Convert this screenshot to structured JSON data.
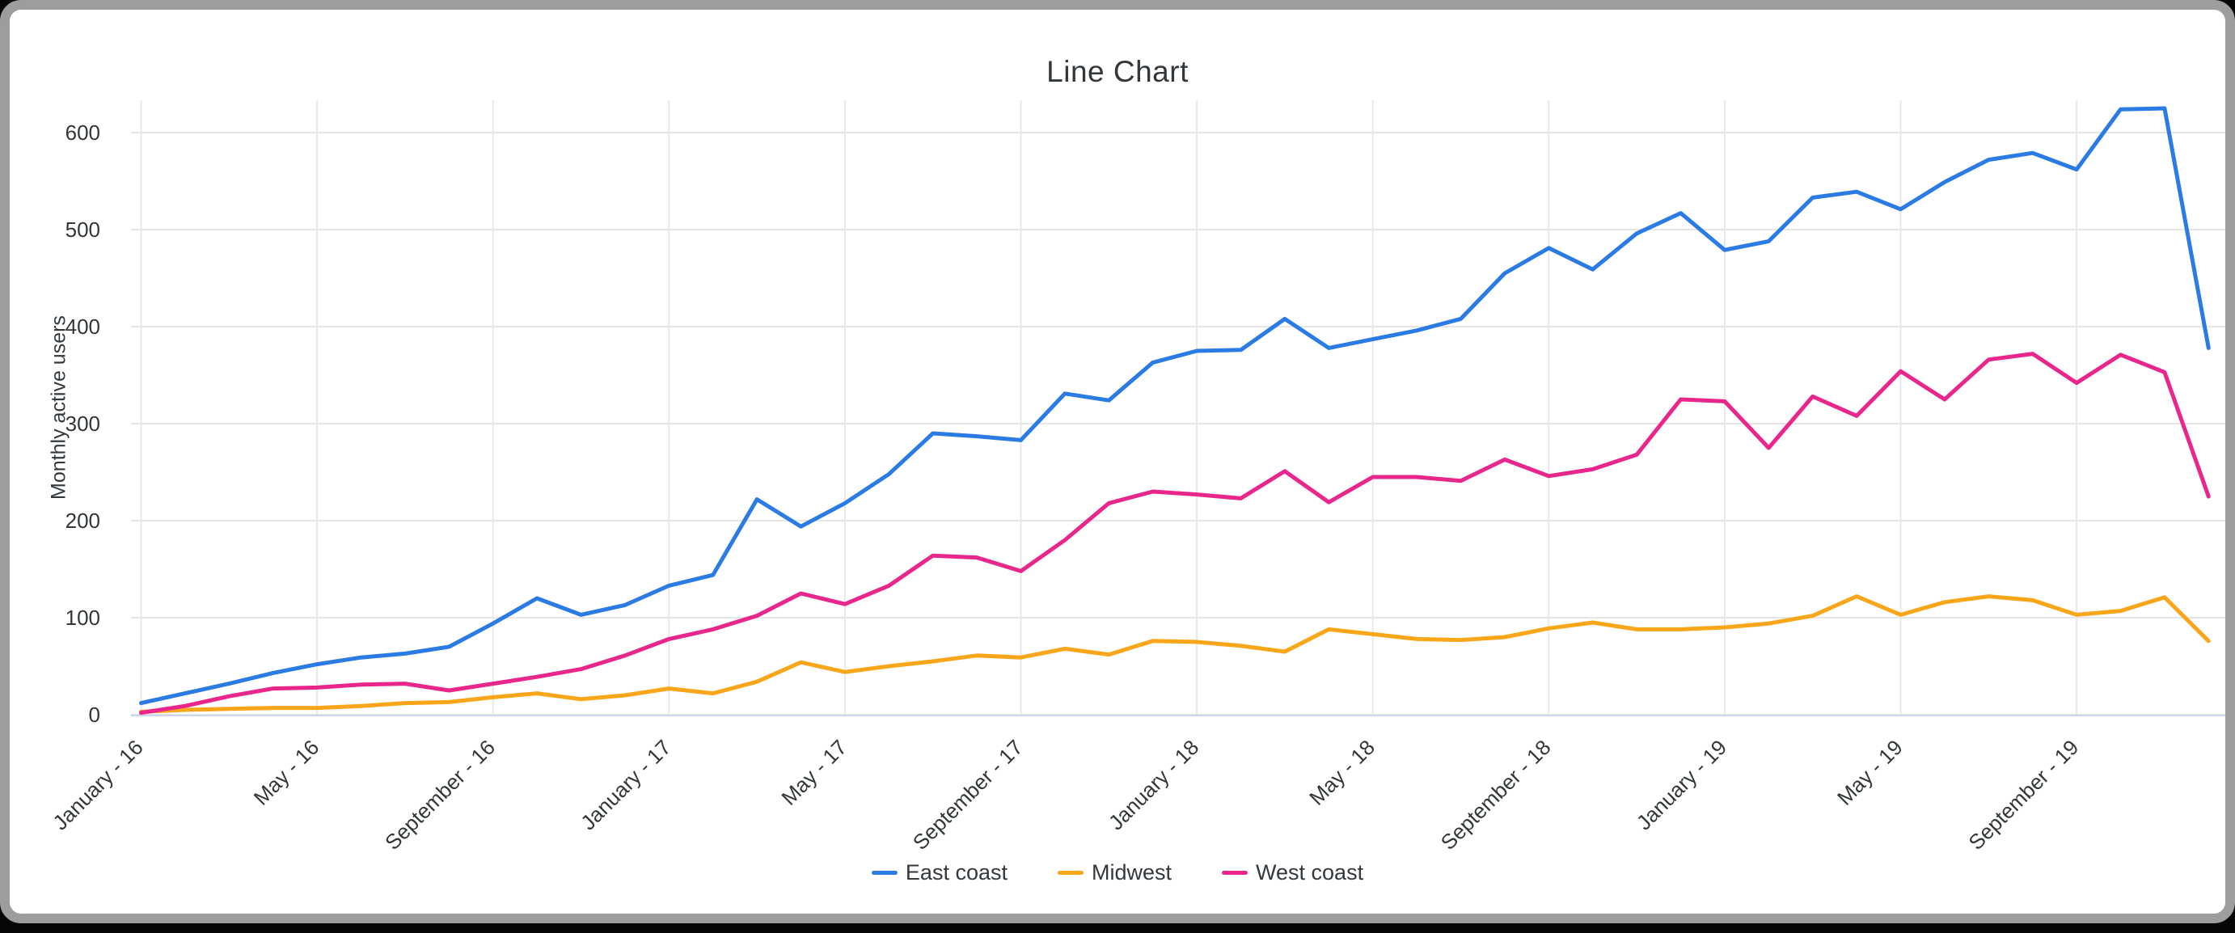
{
  "chart_data": {
    "type": "line",
    "title": "Line Chart",
    "xlabel": "",
    "ylabel": "Monthly active users",
    "ylim": [
      0,
      650
    ],
    "yticks": [
      0,
      100,
      200,
      300,
      400,
      500,
      600
    ],
    "grid": true,
    "legend_position": "bottom",
    "n_points": 48,
    "x_tick_labels": [
      "January - 16",
      "May - 16",
      "September - 16",
      "January - 17",
      "May - 17",
      "September - 17",
      "January - 18",
      "May - 18",
      "September - 18",
      "January - 19",
      "May - 19",
      "September - 19"
    ],
    "x_tick_indices": [
      0,
      4,
      8,
      12,
      16,
      20,
      24,
      28,
      32,
      36,
      40,
      44
    ],
    "axis_line_color": "#ccd6eb",
    "gridline_color": "#e6e6e6",
    "label_color": "#32373a",
    "series": [
      {
        "name": "East coast",
        "color": "#2b7be4",
        "values": [
          12,
          22,
          32,
          43,
          52,
          59,
          63,
          70,
          94,
          120,
          103,
          113,
          133,
          144,
          222,
          194,
          218,
          248,
          290,
          287,
          283,
          331,
          324,
          363,
          375,
          376,
          408,
          378,
          387,
          396,
          408,
          455,
          481,
          459,
          496,
          517,
          479,
          488,
          533,
          539,
          521,
          549,
          572,
          579,
          562,
          624,
          625,
          378
        ]
      },
      {
        "name": "Midwest",
        "color": "#f9a61a",
        "values": [
          3,
          5,
          6,
          7,
          7,
          9,
          12,
          13,
          18,
          22,
          16,
          20,
          27,
          22,
          34,
          54,
          44,
          50,
          55,
          61,
          59,
          68,
          62,
          76,
          75,
          71,
          65,
          88,
          83,
          78,
          77,
          80,
          89,
          95,
          88,
          88,
          90,
          94,
          102,
          122,
          103,
          116,
          122,
          118,
          103,
          107,
          121,
          76
        ]
      },
      {
        "name": "West coast",
        "color": "#e8268c",
        "values": [
          2,
          9,
          19,
          27,
          28,
          31,
          32,
          25,
          32,
          39,
          47,
          61,
          78,
          88,
          102,
          125,
          114,
          133,
          164,
          162,
          148,
          180,
          218,
          230,
          227,
          223,
          251,
          219,
          245,
          245,
          241,
          263,
          246,
          253,
          268,
          325,
          323,
          275,
          328,
          308,
          354,
          325,
          366,
          372,
          342,
          371,
          353,
          225
        ]
      }
    ]
  }
}
